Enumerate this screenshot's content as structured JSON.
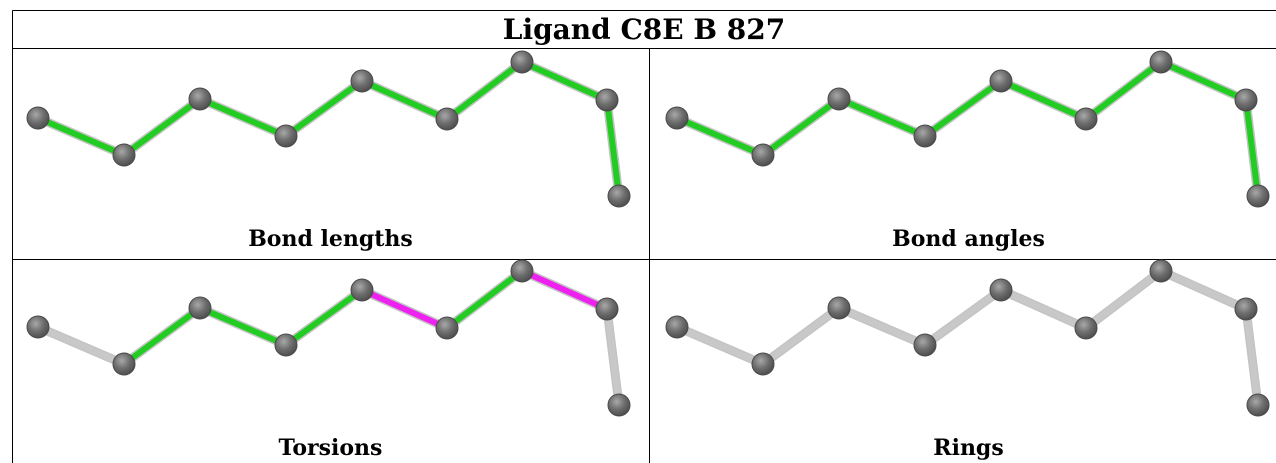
{
  "title": "Ligand C8E B 827",
  "colors": {
    "green": "#22cc22",
    "magenta": "#ee22ee",
    "gray": "#c8c8c8",
    "atom": "#6e6e6e"
  },
  "panels": [
    {
      "label": "Bond lengths",
      "bonds": [
        "green",
        "green",
        "green",
        "green",
        "green",
        "green",
        "green",
        "green"
      ]
    },
    {
      "label": "Bond angles",
      "bonds": [
        "green",
        "green",
        "green",
        "green",
        "green",
        "green",
        "green",
        "green"
      ]
    },
    {
      "label": "Torsions",
      "bonds": [
        "gray",
        "green",
        "green",
        "green",
        "magenta",
        "green",
        "magenta",
        "gray"
      ]
    },
    {
      "label": "Rings",
      "bonds": [
        "gray",
        "gray",
        "gray",
        "gray",
        "gray",
        "gray",
        "gray",
        "gray"
      ]
    }
  ]
}
